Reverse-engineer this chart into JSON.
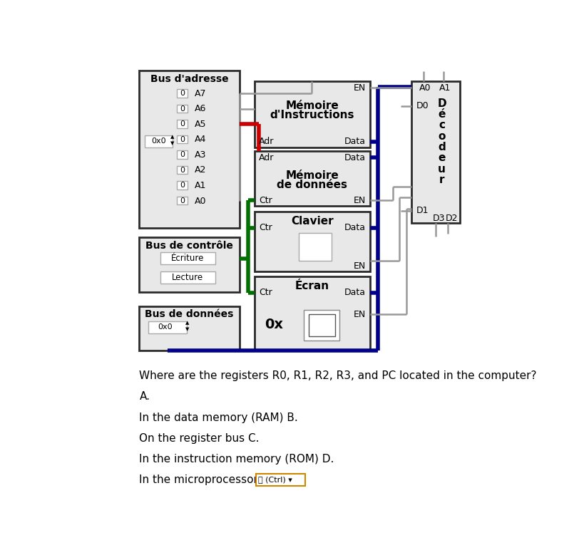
{
  "bg_color": "#ffffff",
  "box_fill": "#e8e8e8",
  "box_edge": "#2b2b2b",
  "red_color": "#cc0000",
  "blue_color": "#00008b",
  "green_color": "#007000",
  "gray_line": "#999999",
  "question_text": "Where are the registers R0, R1, R2, R3, and PC located in the computer?",
  "answer_A": "A.",
  "answer_B": "In the data memory (RAM) B.",
  "answer_C": "On the register bus C.",
  "answer_D": "In the instruction memory (ROM) D.",
  "answer_E": "In the microprocessor\""
}
